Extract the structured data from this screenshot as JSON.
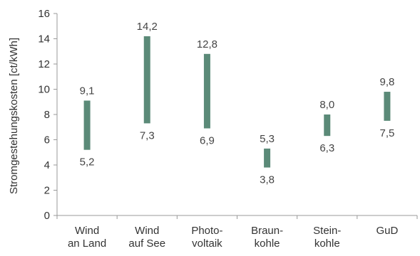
{
  "chart_data": {
    "type": "bar",
    "subtype": "floating-range",
    "title": "",
    "xlabel": "",
    "ylabel": "Stromgestehungskosten [ct/kWh]",
    "ylim": [
      0,
      16
    ],
    "yticks": [
      "0",
      "2",
      "4",
      "6",
      "8",
      "10",
      "12",
      "14",
      "16"
    ],
    "grid": false,
    "bar_color": "#5b8a78",
    "categories": [
      [
        "Wind",
        "an Land"
      ],
      [
        "Wind",
        "auf See"
      ],
      [
        "Photo-",
        "voltaik"
      ],
      [
        "Braun-",
        "kohle"
      ],
      [
        "Stein-",
        "kohle"
      ],
      [
        "GuD"
      ]
    ],
    "values": [
      {
        "low": 5.2,
        "high": 9.1,
        "low_label": "5,2",
        "high_label": "9,1"
      },
      {
        "low": 7.3,
        "high": 14.2,
        "low_label": "7,3",
        "high_label": "14,2"
      },
      {
        "low": 6.9,
        "high": 12.8,
        "low_label": "6,9",
        "high_label": "12,8"
      },
      {
        "low": 3.8,
        "high": 5.3,
        "low_label": "3,8",
        "high_label": "5,3"
      },
      {
        "low": 6.3,
        "high": 8.0,
        "low_label": "6,3",
        "high_label": "8,0"
      },
      {
        "low": 7.5,
        "high": 9.8,
        "low_label": "7,5",
        "high_label": "9,8"
      }
    ]
  }
}
